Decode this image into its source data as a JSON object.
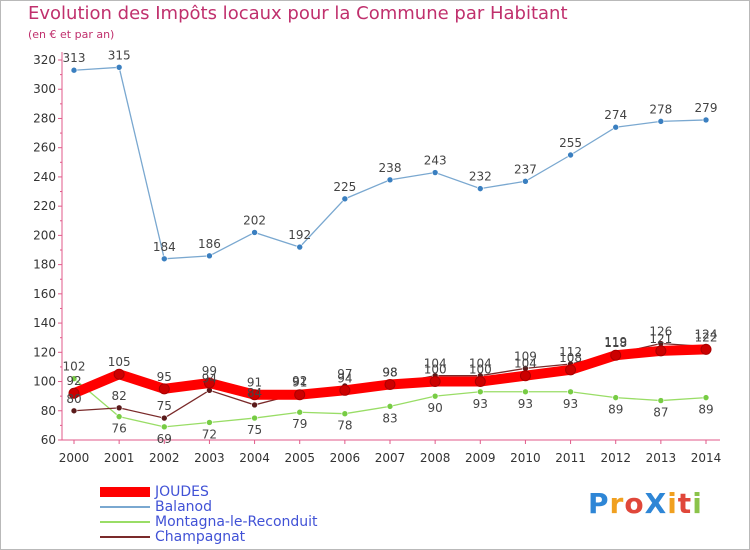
{
  "header": {
    "title": "Evolution des Impôts locaux pour la Commune par Habitant",
    "subtitle": "(en € et par an)"
  },
  "logo": {
    "text": "ProXiti",
    "letters": [
      "P",
      "r",
      "o",
      "X",
      "i",
      "t",
      "i"
    ],
    "colors": [
      "#2e86d6",
      "#f0a020",
      "#e0473a",
      "#2e86d6",
      "#f0a020",
      "#e0473a",
      "#8bc34a"
    ]
  },
  "chart_data": {
    "type": "line",
    "title": "Evolution des Impôts locaux pour la Commune par Habitant",
    "subtitle": "(en € et par an)",
    "x": [
      "2000",
      "2001",
      "2002",
      "2003",
      "2004",
      "2005",
      "2006",
      "2007",
      "2008",
      "2009",
      "2010",
      "2011",
      "2012",
      "2013",
      "2014"
    ],
    "ylim": [
      60,
      320
    ],
    "yticks": [
      60,
      80,
      100,
      120,
      140,
      160,
      180,
      200,
      220,
      240,
      260,
      280,
      300,
      320
    ],
    "grid": false,
    "legend_position": "bottom-left",
    "series": [
      {
        "name": "JOUDES",
        "color": "#ff0000",
        "marker": "#cc0000",
        "width": "thick",
        "values": [
          92,
          105,
          95,
          99,
          91,
          91,
          94,
          98,
          100,
          100,
          104,
          108,
          118,
          121,
          122
        ]
      },
      {
        "name": "Balanod",
        "color": "#7aa8d0",
        "marker": "#3a7fc0",
        "width": "thin",
        "values": [
          313,
          315,
          184,
          186,
          202,
          192,
          225,
          238,
          243,
          232,
          237,
          255,
          274,
          278,
          279
        ]
      },
      {
        "name": "Montagna-le-Reconduit",
        "color": "#99dd66",
        "marker": "#77cc44",
        "width": "thin",
        "values": [
          102,
          76,
          69,
          72,
          75,
          79,
          78,
          83,
          90,
          93,
          93,
          93,
          89,
          87,
          89
        ]
      },
      {
        "name": "Champagnat",
        "color": "#7a2a2a",
        "marker": "#5a1a1a",
        "width": "thin",
        "values": [
          80,
          82,
          75,
          94,
          84,
          92,
          97,
          98,
          104,
          104,
          109,
          112,
          119,
          126,
          124
        ]
      }
    ]
  }
}
